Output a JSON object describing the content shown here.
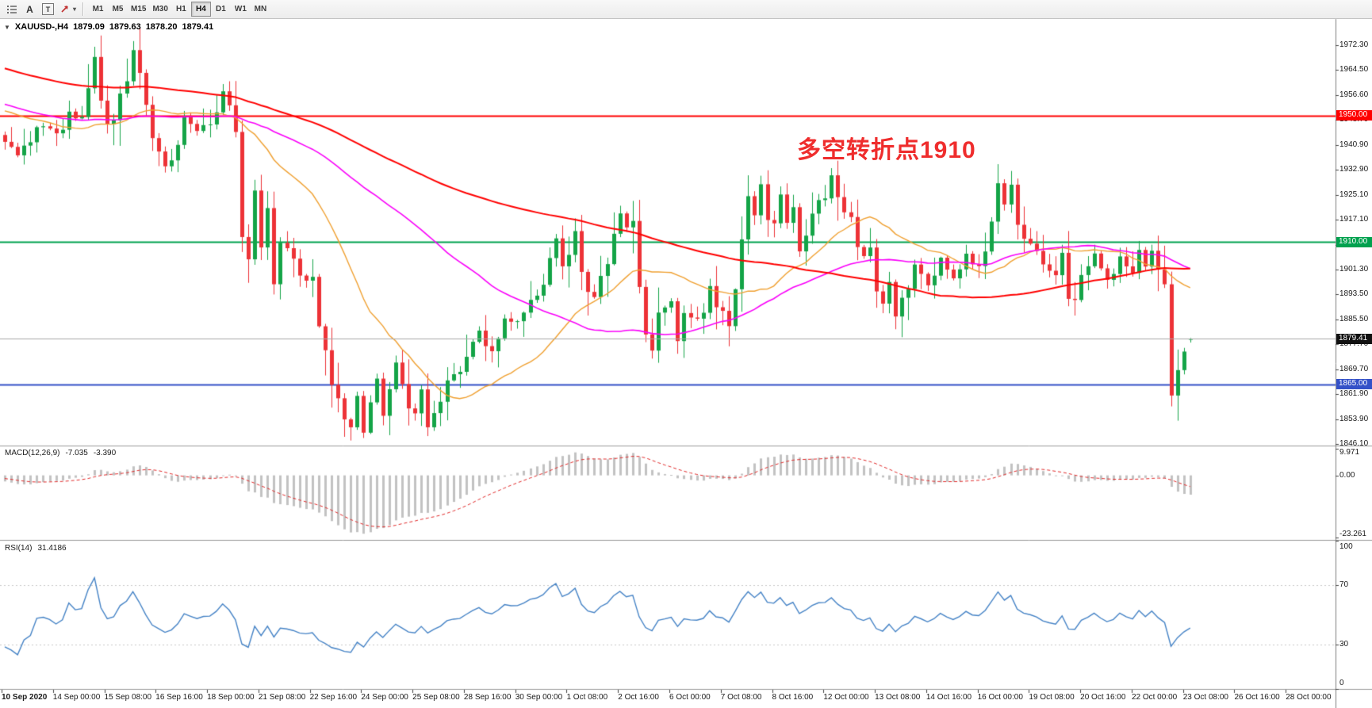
{
  "toolbar": {
    "label_tool": "A",
    "text_tool": "T",
    "timeframes": [
      "M1",
      "M5",
      "M15",
      "M30",
      "H1",
      "H4",
      "D1",
      "W1",
      "MN"
    ],
    "selected_timeframe": "H4"
  },
  "chart_data": {
    "type": "candlestick",
    "symbol": "XAUUSD-",
    "timeframe": "H4",
    "title": "XAUUSD-,H4",
    "ohlc_display": {
      "open": "1879.09",
      "high": "1879.63",
      "low": "1878.20",
      "close": "1879.41"
    },
    "annotation": {
      "text": "多空转折点1910",
      "color": "#ef2d2d"
    },
    "colors": {
      "bull": "#14a447",
      "bear": "#ed3237",
      "bid_line": "#a8a8a8",
      "scale_text": "#1a1a1a",
      "separator": "#9a9a9a",
      "tick_mark": "#444444"
    },
    "y_axis": {
      "ticks": [
        "1972.30",
        "1964.50",
        "1956.60",
        "1948.70",
        "1940.90",
        "1932.90",
        "1925.10",
        "1917.10",
        "1909.30",
        "1901.30",
        "1893.50",
        "1885.50",
        "1877.70",
        "1869.70",
        "1861.90",
        "1853.90",
        "1846.10"
      ],
      "min": 1844.9,
      "max": 1980.2
    },
    "x_axis": {
      "labels": [
        "10 Sep 2020",
        "14 Sep 00:00",
        "15 Sep 08:00",
        "16 Sep 16:00",
        "18 Sep 00:00",
        "21 Sep 08:00",
        "22 Sep 16:00",
        "24 Sep 00:00",
        "25 Sep 08:00",
        "28 Sep 16:00",
        "30 Sep 00:00",
        "1 Oct 08:00",
        "2 Oct 16:00",
        "6 Oct 00:00",
        "7 Oct 08:00",
        "8 Oct 16:00",
        "12 Oct 00:00",
        "13 Oct 08:00",
        "14 Oct 16:00",
        "16 Oct 00:00",
        "19 Oct 08:00",
        "20 Oct 16:00",
        "22 Oct 00:00",
        "23 Oct 08:00",
        "26 Oct 16:00",
        "28 Oct 00:00"
      ]
    },
    "horizontal_lines": [
      {
        "price": 1950.0,
        "label": "1950.00",
        "color": "#ff0000",
        "width": 2,
        "role": "resistance"
      },
      {
        "price": 1910.0,
        "label": "1910.00",
        "color": "#00a14e",
        "width": 2,
        "role": "pivot"
      },
      {
        "price": 1879.41,
        "label": "1879.41",
        "color": "#111111",
        "width": 1,
        "role": "bid"
      },
      {
        "price": 1865.0,
        "label": "1865.00",
        "color": "#3451c8",
        "width": 2,
        "role": "support"
      }
    ],
    "moving_averages": [
      {
        "period": 21,
        "color": "#f0a030",
        "width": 1.4
      },
      {
        "period": 55,
        "color": "#fa00fa",
        "width": 1.6
      },
      {
        "period": 110,
        "color": "#ff0000",
        "width": 2
      }
    ],
    "series": {
      "bars_count": 186,
      "pre_bars": 120,
      "last_bar": {
        "o": 1879.09,
        "h": 1879.63,
        "l": 1878.2,
        "c": 1879.41
      },
      "pre_waypoints": [
        [
          -120,
          2036
        ],
        [
          -110,
          2008
        ],
        [
          -100,
          1992
        ],
        [
          -90,
          1952
        ],
        [
          -80,
          1976
        ],
        [
          -70,
          1988
        ],
        [
          -60,
          1968
        ],
        [
          -50,
          1974
        ],
        [
          -40,
          1956
        ],
        [
          -30,
          1942
        ],
        [
          -20,
          1952
        ],
        [
          -12,
          1960
        ],
        [
          -6,
          1950
        ],
        [
          -1,
          1946
        ]
      ],
      "waypoints": [
        [
          0,
          1944
        ],
        [
          2,
          1938
        ],
        [
          5,
          1948
        ],
        [
          8,
          1946
        ],
        [
          10,
          1953
        ],
        [
          12,
          1950
        ],
        [
          14,
          1969
        ],
        [
          16,
          1948
        ],
        [
          18,
          1958
        ],
        [
          20,
          1971
        ],
        [
          21,
          1966
        ],
        [
          23,
          1945
        ],
        [
          25,
          1934
        ],
        [
          28,
          1950
        ],
        [
          30,
          1946
        ],
        [
          32,
          1951
        ],
        [
          34,
          1958
        ],
        [
          36,
          1950
        ],
        [
          37,
          1916
        ],
        [
          38,
          1908
        ],
        [
          39,
          1928
        ],
        [
          40,
          1912
        ],
        [
          41,
          1921
        ],
        [
          42,
          1901
        ],
        [
          43,
          1912
        ],
        [
          45,
          1906
        ],
        [
          47,
          1898
        ],
        [
          48,
          1901
        ],
        [
          49,
          1888
        ],
        [
          51,
          1870
        ],
        [
          53,
          1859
        ],
        [
          54,
          1853
        ],
        [
          55,
          1863
        ],
        [
          56,
          1851
        ],
        [
          57,
          1861
        ],
        [
          58,
          1868
        ],
        [
          59,
          1857
        ],
        [
          60,
          1866
        ],
        [
          61,
          1873
        ],
        [
          62,
          1867
        ],
        [
          63,
          1860
        ],
        [
          64,
          1857
        ],
        [
          65,
          1866
        ],
        [
          66,
          1852
        ],
        [
          67,
          1860
        ],
        [
          69,
          1867
        ],
        [
          71,
          1872
        ],
        [
          72,
          1878
        ],
        [
          74,
          1883
        ],
        [
          76,
          1877
        ],
        [
          78,
          1888
        ],
        [
          80,
          1885
        ],
        [
          82,
          1893
        ],
        [
          84,
          1898
        ],
        [
          86,
          1912
        ],
        [
          87,
          1904
        ],
        [
          88,
          1909
        ],
        [
          89,
          1916
        ],
        [
          90,
          1905
        ],
        [
          92,
          1893
        ],
        [
          94,
          1907
        ],
        [
          96,
          1920
        ],
        [
          97,
          1915
        ],
        [
          98,
          1921
        ],
        [
          99,
          1899
        ],
        [
          100,
          1883
        ],
        [
          101,
          1876
        ],
        [
          102,
          1889
        ],
        [
          104,
          1893
        ],
        [
          105,
          1881
        ],
        [
          106,
          1890
        ],
        [
          108,
          1887
        ],
        [
          110,
          1897
        ],
        [
          112,
          1889
        ],
        [
          113,
          1887
        ],
        [
          114,
          1899
        ],
        [
          115,
          1913
        ],
        [
          116,
          1927
        ],
        [
          117,
          1920
        ],
        [
          118,
          1929
        ],
        [
          119,
          1921
        ],
        [
          120,
          1916
        ],
        [
          121,
          1926
        ],
        [
          122,
          1917
        ],
        [
          123,
          1924
        ],
        [
          124,
          1911
        ],
        [
          125,
          1917
        ],
        [
          126,
          1923
        ],
        [
          128,
          1927
        ],
        [
          129,
          1932
        ],
        [
          130,
          1927
        ],
        [
          132,
          1919
        ],
        [
          134,
          1907
        ],
        [
          135,
          1912
        ],
        [
          136,
          1897
        ],
        [
          137,
          1891
        ],
        [
          138,
          1898
        ],
        [
          139,
          1889
        ],
        [
          140,
          1895
        ],
        [
          142,
          1903
        ],
        [
          144,
          1897
        ],
        [
          146,
          1906
        ],
        [
          148,
          1899
        ],
        [
          150,
          1908
        ],
        [
          152,
          1903
        ],
        [
          154,
          1917
        ],
        [
          155,
          1929
        ],
        [
          156,
          1923
        ],
        [
          157,
          1929
        ],
        [
          158,
          1919
        ],
        [
          160,
          1911
        ],
        [
          162,
          1905
        ],
        [
          164,
          1901
        ],
        [
          165,
          1907
        ],
        [
          166,
          1897
        ],
        [
          167,
          1892
        ],
        [
          168,
          1902
        ],
        [
          170,
          1908
        ],
        [
          172,
          1899
        ],
        [
          174,
          1906
        ],
        [
          176,
          1902
        ],
        [
          177,
          1908
        ],
        [
          178,
          1903
        ],
        [
          179,
          1908
        ],
        [
          180,
          1904
        ],
        [
          181,
          1897
        ],
        [
          182,
          1866
        ],
        [
          183,
          1874
        ],
        [
          184,
          1877
        ],
        [
          185,
          1879.41
        ]
      ],
      "high_spikes": [
        [
          14,
          1971.8
        ],
        [
          20,
          1973.6
        ],
        [
          21,
          1972.2
        ],
        [
          34,
          1960
        ],
        [
          89,
          1917.5
        ],
        [
          96,
          1921.5
        ],
        [
          116,
          1930
        ],
        [
          118,
          1931
        ],
        [
          129,
          1933.4
        ],
        [
          155,
          1931.6
        ],
        [
          157,
          1931
        ]
      ],
      "low_spikes": [
        [
          25,
          1932
        ],
        [
          38,
          1906
        ],
        [
          54,
          1847.2
        ],
        [
          56,
          1848
        ],
        [
          59,
          1852
        ],
        [
          64,
          1853.5
        ],
        [
          66,
          1848.6
        ],
        [
          101,
          1873.4
        ],
        [
          137,
          1887.5
        ],
        [
          167,
          1890.5
        ],
        [
          182,
          1859.8
        ],
        [
          183,
          1869
        ]
      ]
    },
    "indicators": [
      {
        "name": "MACD",
        "display": "MACD(12,26,9)",
        "values": [
          "-7.035",
          "-3.390"
        ],
        "fast": 12,
        "slow": 26,
        "signal": 9,
        "scale_labels": [
          "9.971",
          "0.00",
          "-23.261"
        ],
        "scale_max": 9.971,
        "scale_min": -23.261,
        "histogram_color": "#c2c2c2",
        "signal_color": "#e22a2a"
      },
      {
        "name": "RSI",
        "display": "RSI(14)",
        "values": [
          "31.4186"
        ],
        "period": 14,
        "levels": [
          70,
          30
        ],
        "scale_labels": [
          "100",
          "70",
          "30",
          "0"
        ],
        "scale_values": [
          100,
          70,
          30,
          0
        ],
        "line_color": "#4583c6",
        "level_color": "#c8c8c8"
      }
    ]
  }
}
